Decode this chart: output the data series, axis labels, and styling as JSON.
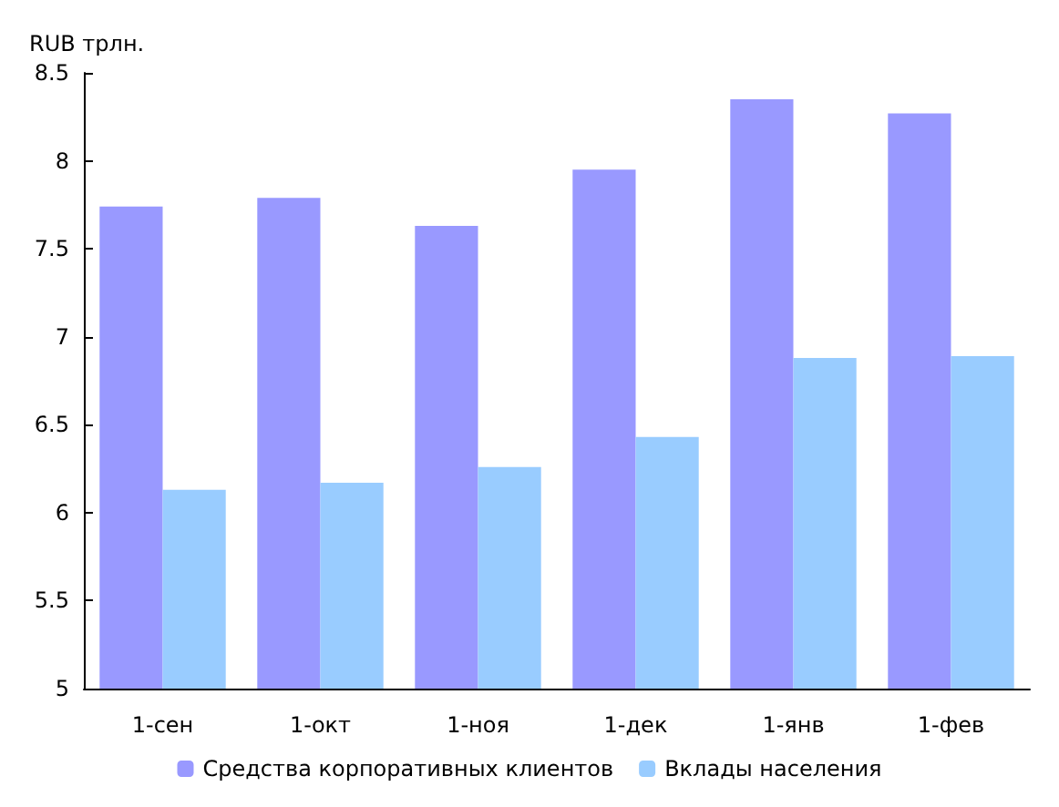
{
  "chart_data": {
    "type": "bar",
    "ylabel": "RUB трлн.",
    "categories": [
      "1-сен",
      "1-окт",
      "1-ноя",
      "1-дек",
      "1-янв",
      "1-фев"
    ],
    "series": [
      {
        "name": "Средства корпоративных клиентов",
        "color": "#9999ff",
        "values": [
          7.74,
          7.79,
          7.63,
          7.95,
          8.35,
          8.27
        ]
      },
      {
        "name": "Вклады населения",
        "color": "#99ccff",
        "values": [
          6.13,
          6.17,
          6.26,
          6.43,
          6.88,
          6.89
        ]
      }
    ],
    "ylim": [
      5,
      8.5
    ],
    "yticks": [
      5,
      5.5,
      6,
      6.5,
      7,
      7.5,
      8,
      8.5
    ],
    "grid": false,
    "legend": "bottom"
  }
}
